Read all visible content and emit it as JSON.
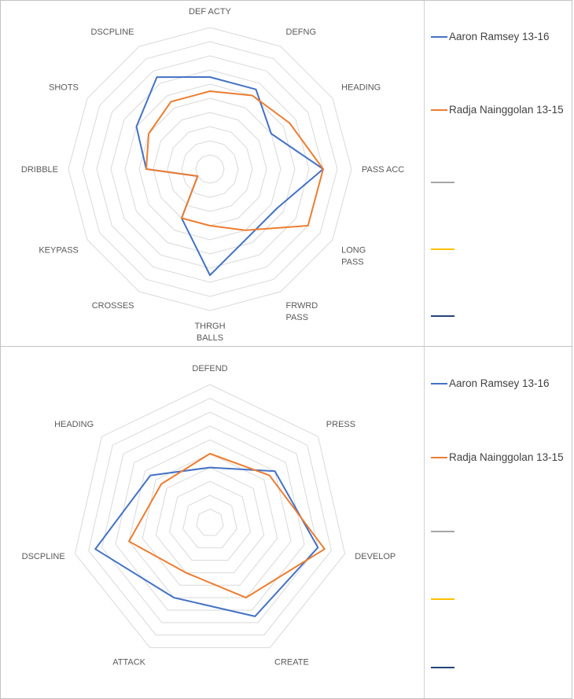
{
  "colors": {
    "series_blue": "#4472C4",
    "series_orange": "#ED7D31",
    "swatch_gray": "#A5A5A5",
    "swatch_yellow": "#FFC000",
    "swatch_navy": "#264478",
    "grid": "#D9D9D9",
    "axis_label": "#595959",
    "panel_border": "#C3C3C3",
    "legend_text": "#404040"
  },
  "legend": {
    "items": [
      {
        "label": "Aaron Ramsey 13-16",
        "color": "#4472C4"
      },
      {
        "label": "Radja Nainggolan 13-15",
        "color": "#ED7D31"
      },
      {
        "label": "",
        "color": "#A5A5A5"
      },
      {
        "label": "",
        "color": "#FFC000"
      },
      {
        "label": "",
        "color": "#264478"
      }
    ]
  },
  "chart_data": [
    {
      "type": "radar",
      "title": "",
      "categories": [
        "DEF ACTY",
        "DEFNG",
        "HEADING",
        "PASS ACC",
        "LONG PASS",
        "FRWRD PASS",
        "THRGH BALLS",
        "CROSSES",
        "KEYPASS",
        "DRIBBLE",
        "SHOTS",
        "DSCPLINE"
      ],
      "series": [
        {
          "name": "Aaron Ramsey 13-16",
          "color": "#4472C4",
          "values": [
            6.5,
            6.5,
            5,
            8,
            5.5,
            5.5,
            7.5,
            4,
            1,
            4.5,
            6,
            7.5
          ]
        },
        {
          "name": "Radja Nainggolan 13-15",
          "color": "#ED7D31",
          "values": [
            5.5,
            6,
            6.5,
            8,
            8,
            5,
            4,
            4,
            1,
            4.5,
            5,
            5.5
          ]
        }
      ],
      "rmax": 10,
      "rings": 10,
      "grid": true,
      "legend_position": "right"
    },
    {
      "type": "radar",
      "title": "",
      "categories": [
        "DEFEND",
        "PRESS",
        "DEVELOP",
        "CREATE",
        "ATTACK",
        "DSCPLINE",
        "HEADING"
      ],
      "series": [
        {
          "name": "Aaron Ramsey 13-16",
          "color": "#4472C4",
          "values": [
            4,
            6,
            8,
            7.5,
            6,
            8.5,
            5.5
          ]
        },
        {
          "name": "Radja Nainggolan 13-15",
          "color": "#ED7D31",
          "values": [
            5,
            5.5,
            8.5,
            6,
            4,
            6,
            4.5
          ]
        }
      ],
      "rmax": 10,
      "rings": 10,
      "grid": true,
      "legend_position": "right"
    }
  ]
}
